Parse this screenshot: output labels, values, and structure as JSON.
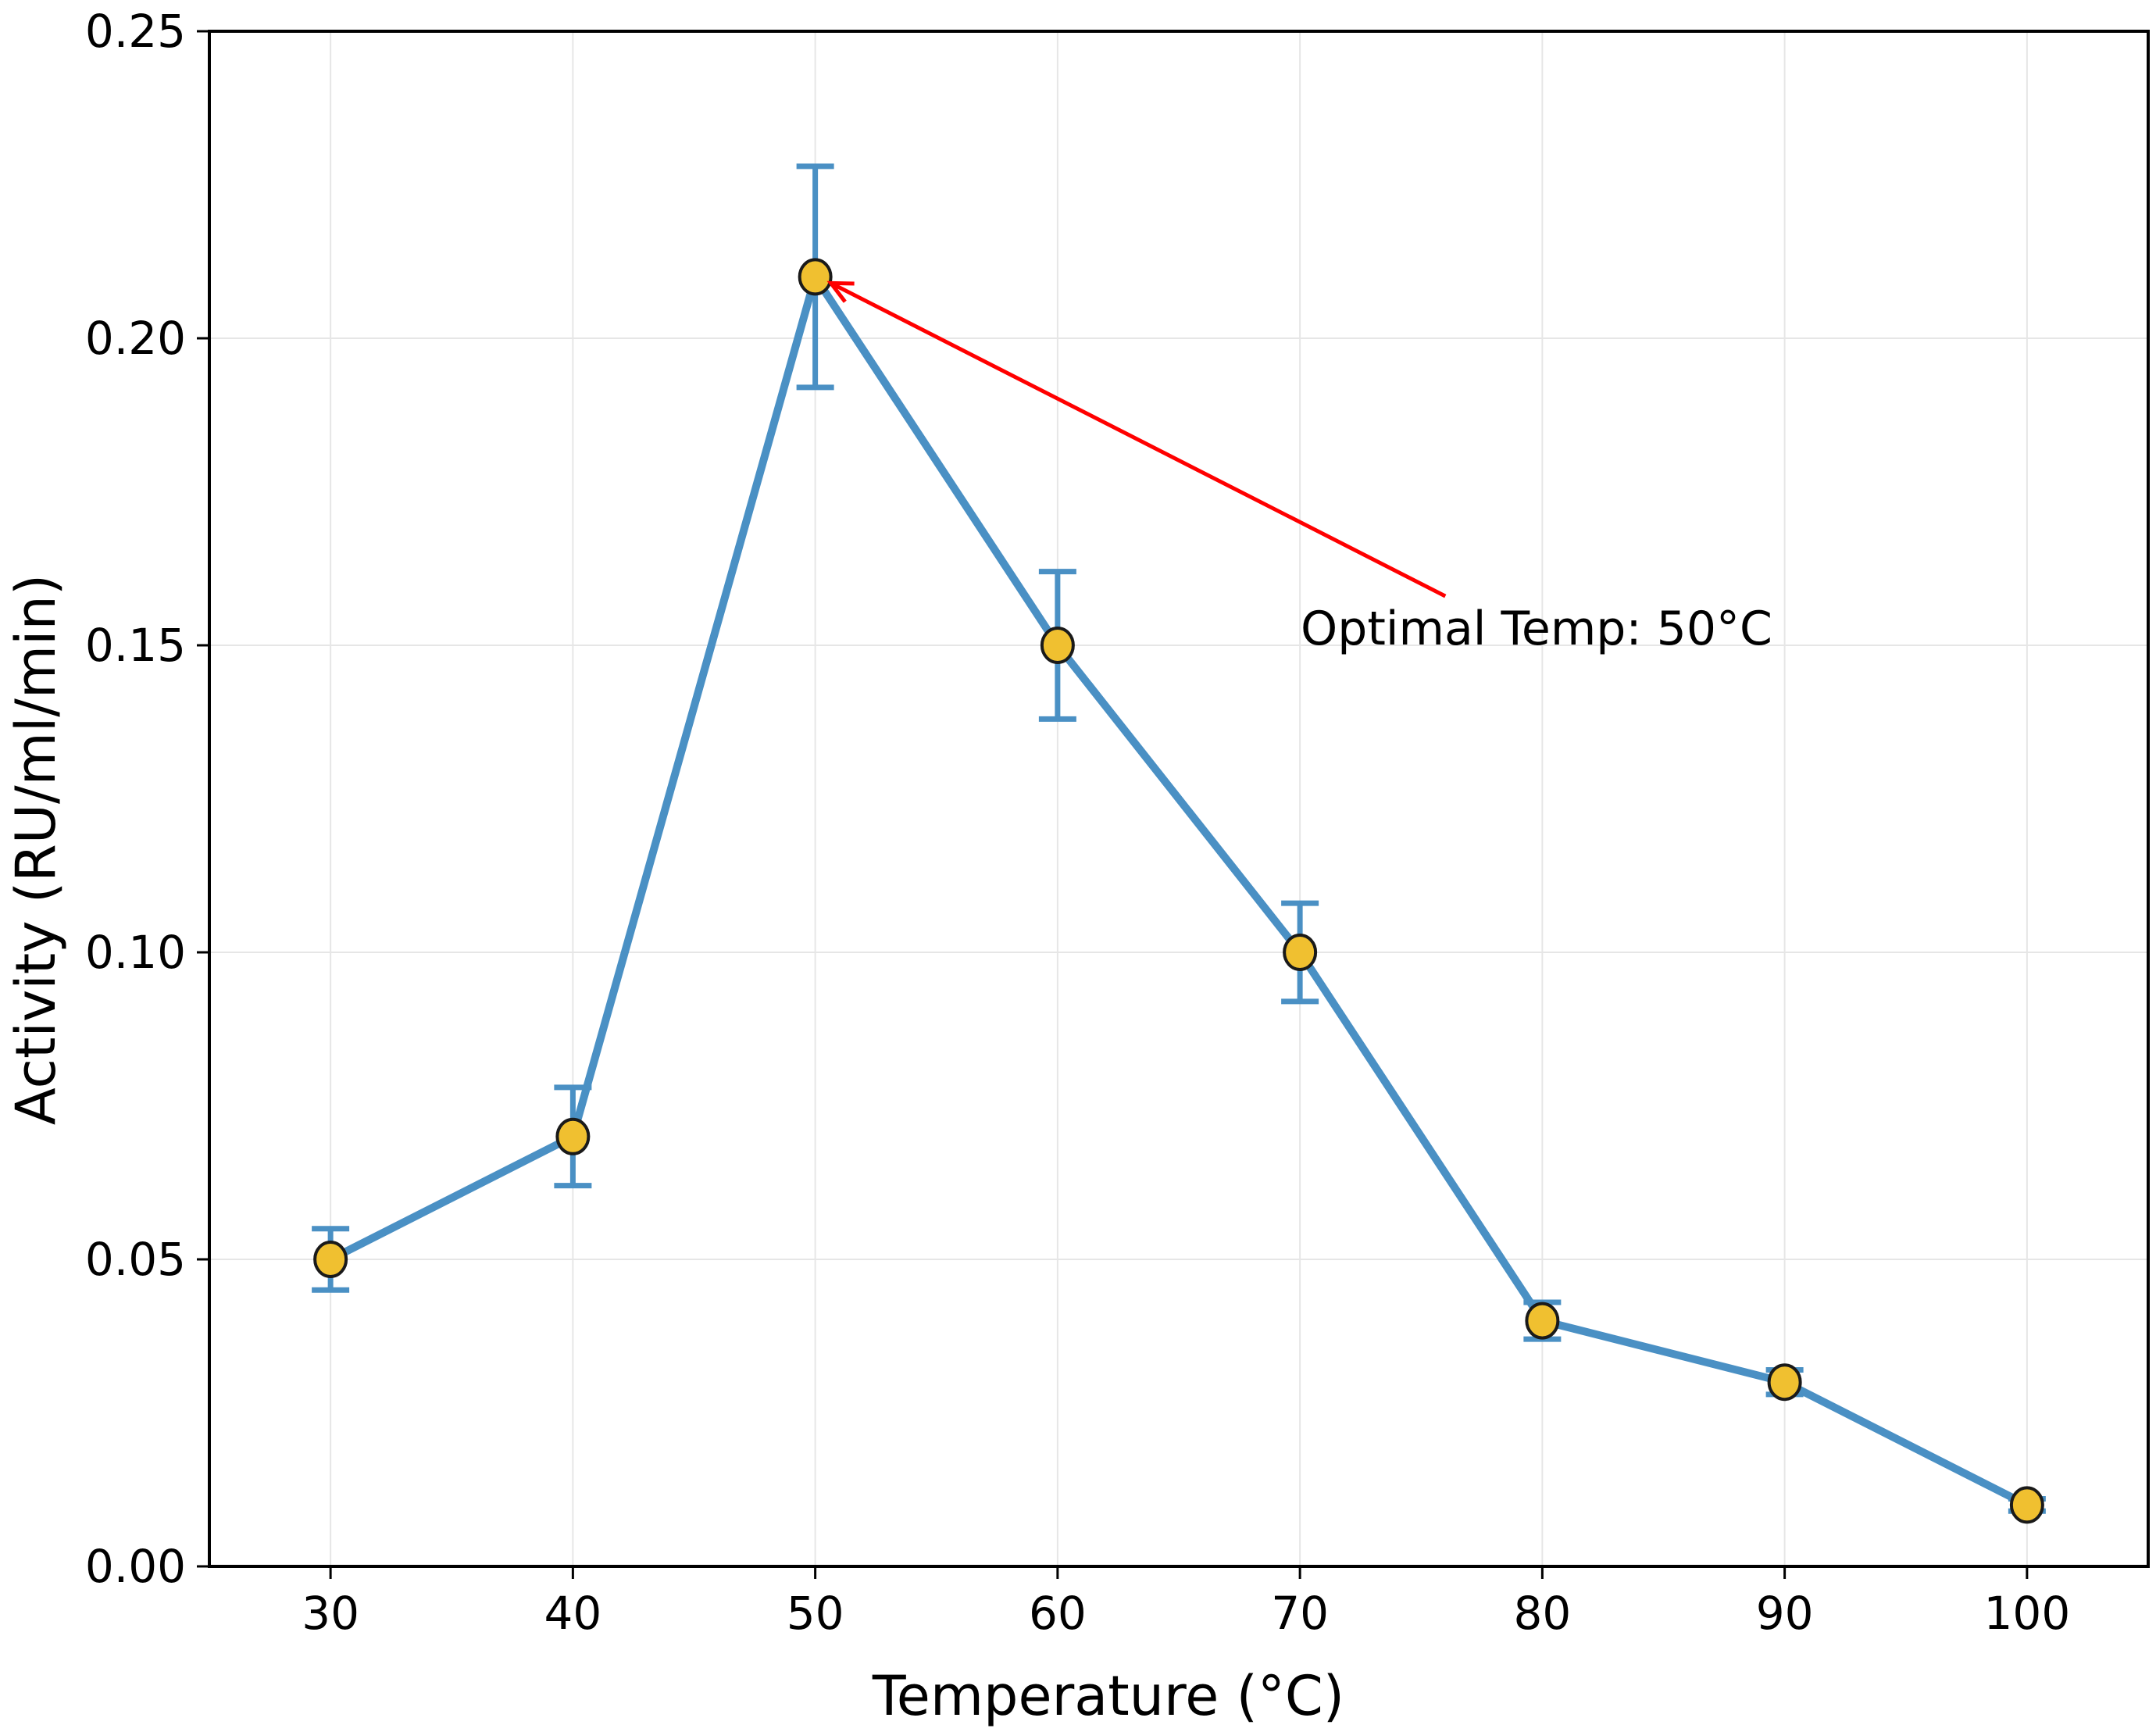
{
  "chart_data": {
    "type": "line",
    "title": "",
    "xlabel": "Temperature (°C)",
    "ylabel": "Activity (RU/ml/min)",
    "xlim": [
      25,
      105
    ],
    "ylim": [
      0,
      0.25
    ],
    "x_ticks": [
      30,
      40,
      50,
      60,
      70,
      80,
      90,
      100
    ],
    "x_tick_labels": [
      "30",
      "40",
      "50",
      "60",
      "70",
      "80",
      "90",
      "100"
    ],
    "y_ticks": [
      0,
      0.05,
      0.1,
      0.15,
      0.2,
      0.25
    ],
    "y_tick_labels": [
      "0.00",
      "0.05",
      "0.10",
      "0.15",
      "0.20",
      "0.25"
    ],
    "grid": true,
    "series": [
      {
        "name": "Activity",
        "line_color": "#4a90c4",
        "marker_color": "#f0c030",
        "x": [
          30,
          40,
          50,
          60,
          70,
          80,
          90,
          100
        ],
        "values": [
          0.05,
          0.07,
          0.21,
          0.15,
          0.1,
          0.04,
          0.03,
          0.01
        ],
        "errors": [
          0.005,
          0.008,
          0.018,
          0.012,
          0.008,
          0.003,
          0.002,
          0.001
        ]
      }
    ],
    "annotation": {
      "text": "Optimal Temp: 50°C",
      "point": [
        50,
        0.21
      ],
      "text_anchor_point": [
        76,
        0.158
      ],
      "arrow_color": "#ff0000"
    }
  }
}
